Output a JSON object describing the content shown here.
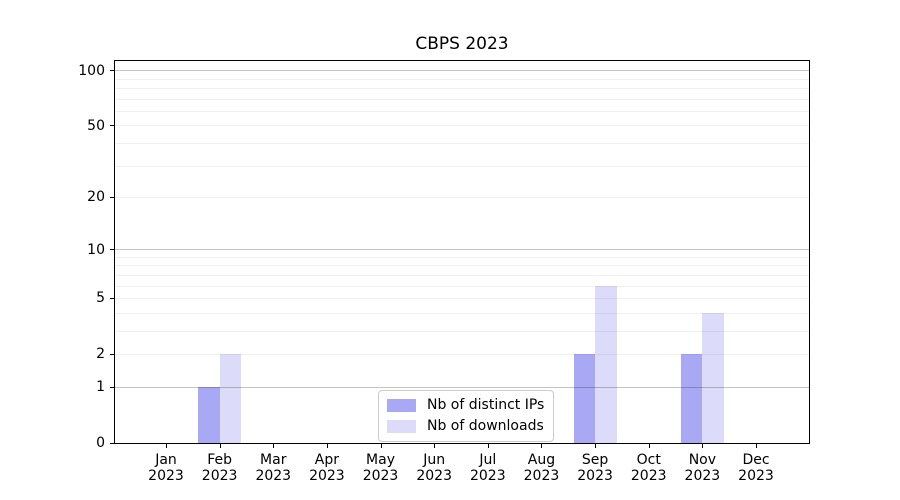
{
  "chart_data": {
    "type": "bar",
    "title": "CBPS 2023",
    "categories": [
      "Jan",
      "Feb",
      "Mar",
      "Apr",
      "May",
      "Jun",
      "Jul",
      "Aug",
      "Sep",
      "Oct",
      "Nov",
      "Dec"
    ],
    "category_year": "2023",
    "series": [
      {
        "name": "Nb of distinct IPs",
        "color": "#a8a8f5",
        "values": [
          0,
          1,
          0,
          0,
          0,
          0,
          0,
          0,
          2,
          0,
          2,
          0
        ]
      },
      {
        "name": "Nb of downloads",
        "color": "#dcdcfa",
        "values": [
          0,
          2,
          0,
          0,
          0,
          0,
          0,
          0,
          6,
          0,
          4,
          0
        ]
      }
    ],
    "y_axis": {
      "scale": "log1p",
      "ylim": [
        0,
        113
      ],
      "tick_values": [
        0,
        1,
        2,
        5,
        10,
        20,
        50,
        100
      ],
      "tick_labels": [
        "0",
        "1",
        "2",
        "5",
        "10",
        "20",
        "50",
        "100"
      ],
      "major_gridlines": [
        1,
        10,
        100
      ],
      "minor_gridlines": [
        2,
        3,
        4,
        5,
        6,
        7,
        8,
        9,
        20,
        30,
        40,
        50,
        60,
        70,
        80,
        90
      ]
    },
    "legend": {
      "position": "lower-center-inside"
    },
    "grid": "on",
    "xlabel": "",
    "ylabel": ""
  }
}
